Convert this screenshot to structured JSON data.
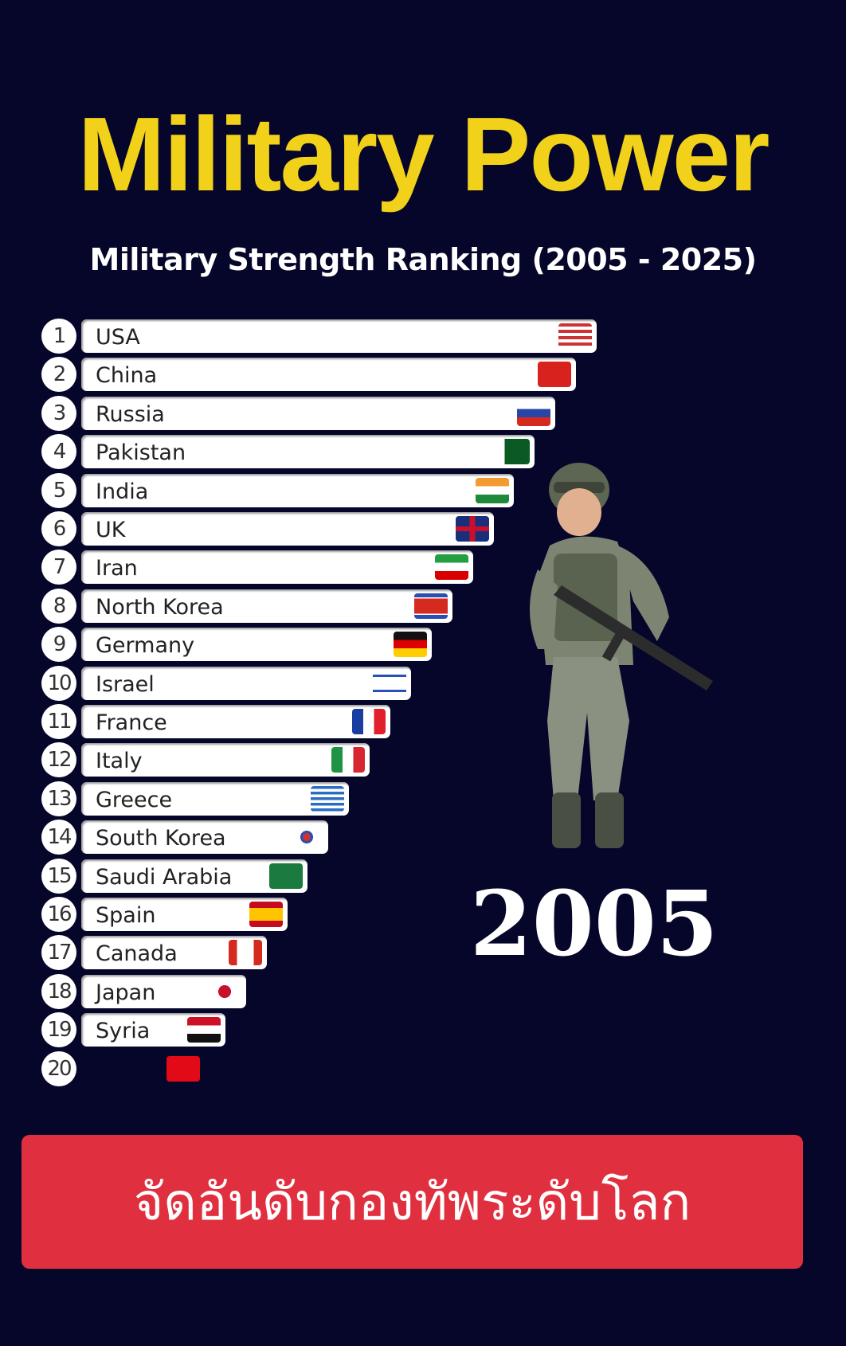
{
  "title": "Military Power",
  "subtitle": "Military Strength Ranking (2005 - 2025)",
  "year": "2005",
  "banner": "จัดอันดับกองทัพระดับโลก",
  "colors": {
    "title": "#f2d11b",
    "background": "#06062a",
    "banner": "#e0303f"
  },
  "ranking": [
    {
      "rank": "1",
      "country": "USA",
      "flag": "usa"
    },
    {
      "rank": "2",
      "country": "China",
      "flag": "china"
    },
    {
      "rank": "3",
      "country": "Russia",
      "flag": "russia"
    },
    {
      "rank": "4",
      "country": "Pakistan",
      "flag": "pakistan"
    },
    {
      "rank": "5",
      "country": "India",
      "flag": "india"
    },
    {
      "rank": "6",
      "country": "UK",
      "flag": "uk"
    },
    {
      "rank": "7",
      "country": "Iran",
      "flag": "iran"
    },
    {
      "rank": "8",
      "country": "North Korea",
      "flag": "north-korea"
    },
    {
      "rank": "9",
      "country": "Germany",
      "flag": "germany"
    },
    {
      "rank": "10",
      "country": "Israel",
      "flag": "israel"
    },
    {
      "rank": "11",
      "country": "France",
      "flag": "france"
    },
    {
      "rank": "12",
      "country": "Italy",
      "flag": "italy"
    },
    {
      "rank": "13",
      "country": "Greece",
      "flag": "greece"
    },
    {
      "rank": "14",
      "country": "South Korea",
      "flag": "south-korea"
    },
    {
      "rank": "15",
      "country": "Saudi Arabia",
      "flag": "saudi-arabia"
    },
    {
      "rank": "16",
      "country": "Spain",
      "flag": "spain"
    },
    {
      "rank": "17",
      "country": "Canada",
      "flag": "canada"
    },
    {
      "rank": "18",
      "country": "Japan",
      "flag": "japan"
    },
    {
      "rank": "19",
      "country": "Syria",
      "flag": "syria"
    },
    {
      "rank": "20",
      "country": "",
      "flag": "turkey"
    }
  ]
}
